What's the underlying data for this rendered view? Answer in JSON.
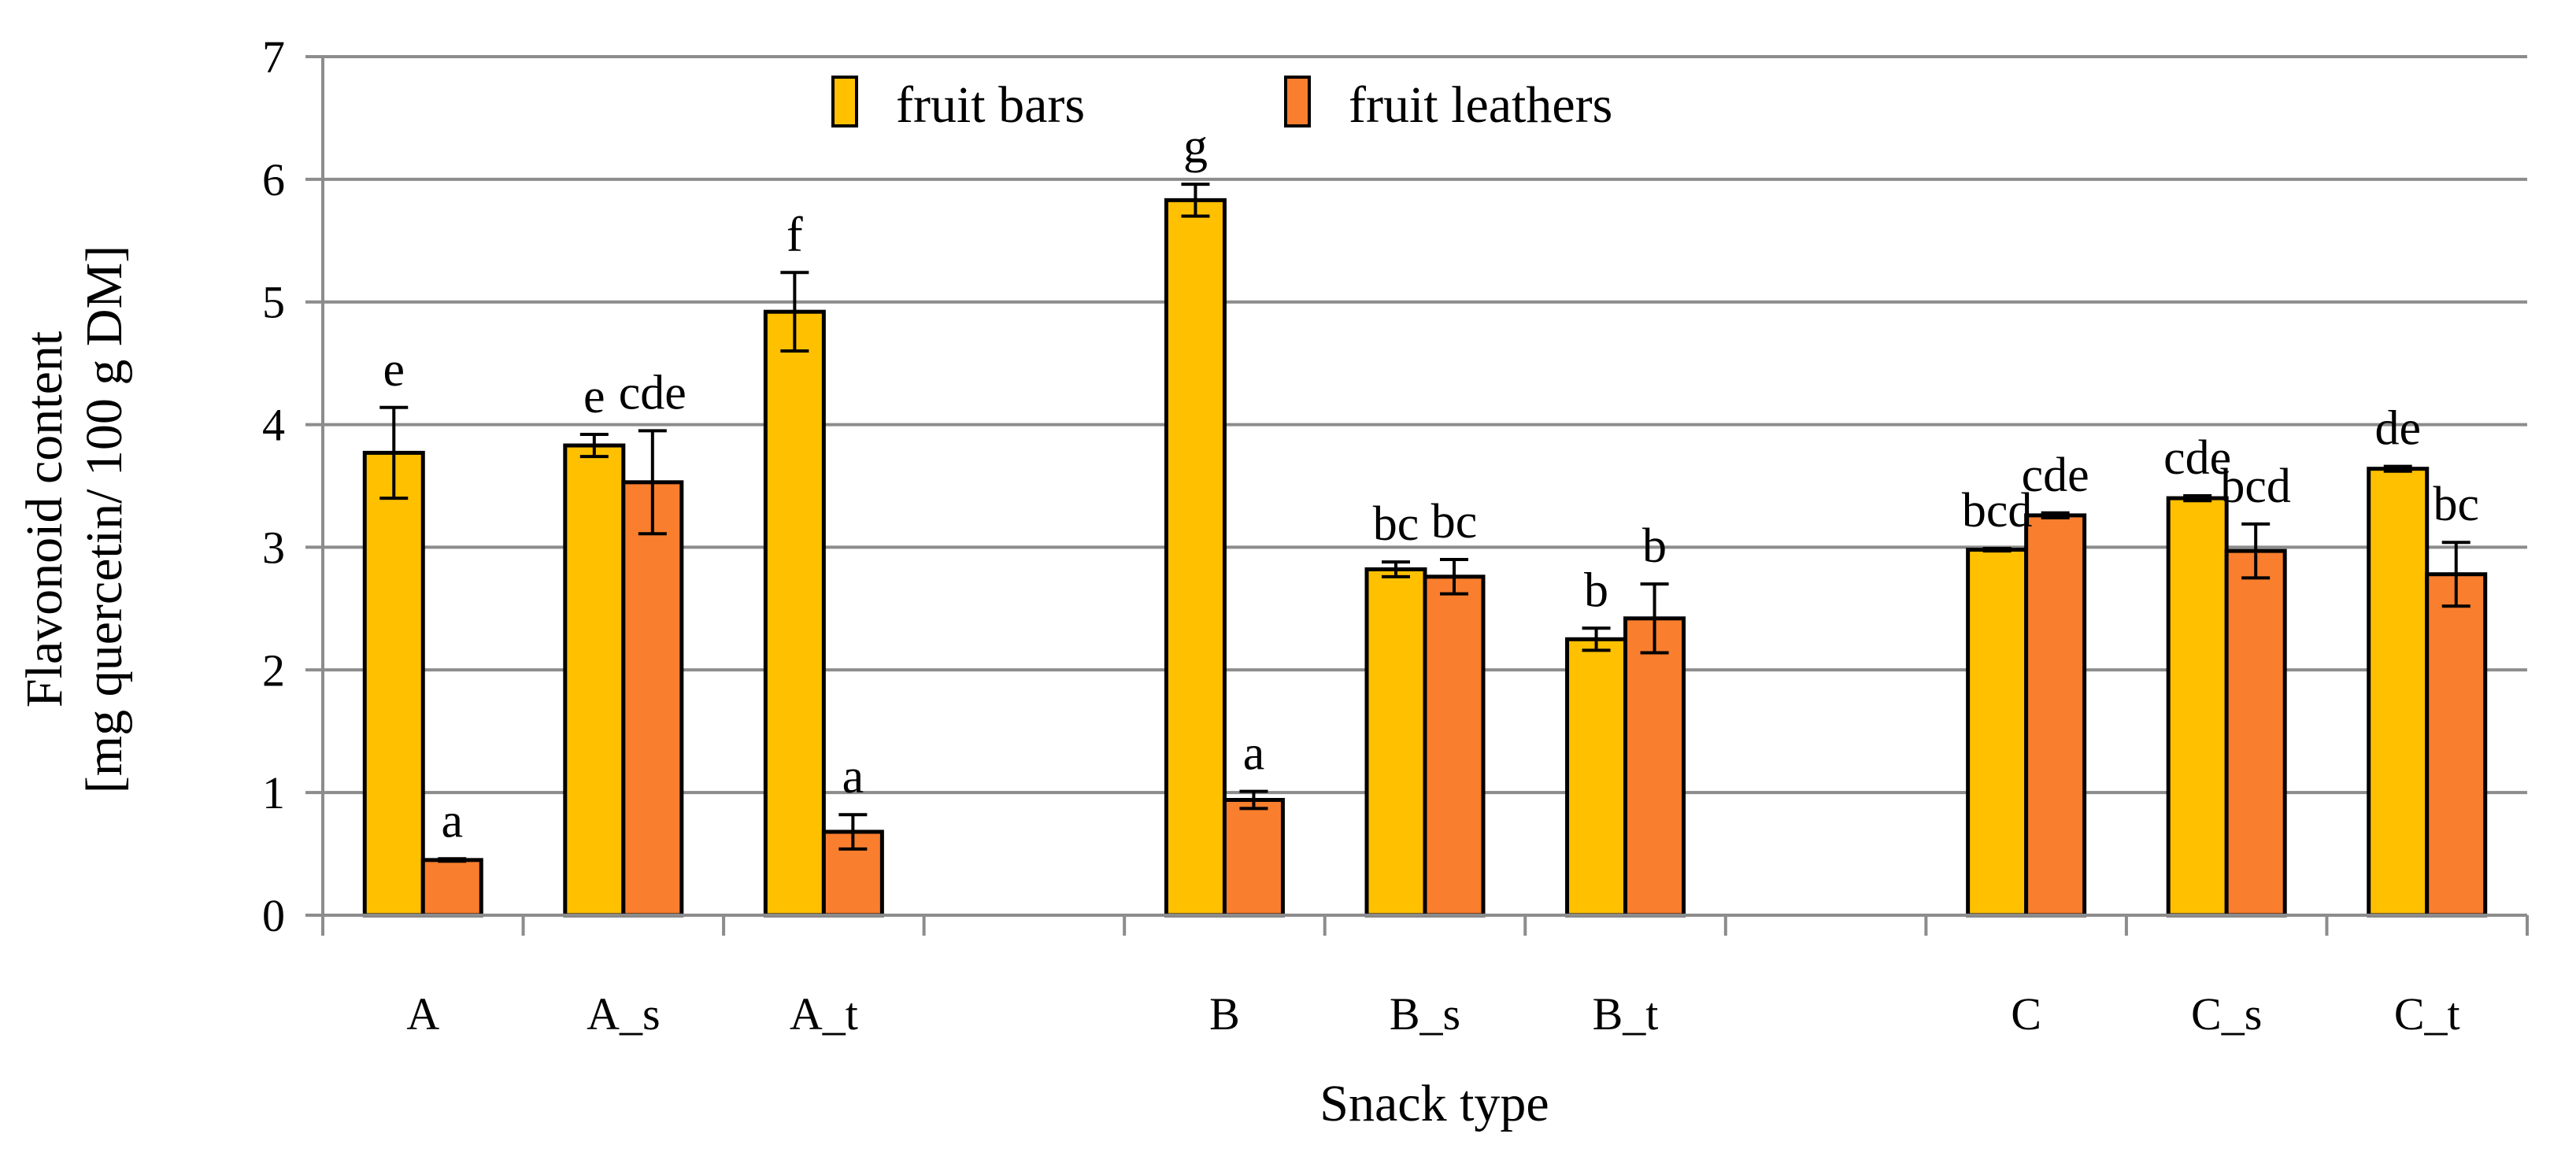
{
  "chart_data": {
    "type": "bar",
    "title": "",
    "xlabel": "Snack type",
    "ylabel_lines": [
      "Flavonoid content",
      "[mg quercetin/ 100 g DM]"
    ],
    "ylim": [
      0,
      7
    ],
    "yticks": [
      0,
      1,
      2,
      3,
      4,
      5,
      6,
      7
    ],
    "grid": true,
    "legend_position": "top-center",
    "categories": [
      "A",
      "A_s",
      "A_t",
      "",
      "B",
      "B_s",
      "B_t",
      "",
      "C",
      "C_s",
      "C_t"
    ],
    "series": [
      {
        "name": "fruit bars",
        "color": "#FFC000",
        "values": [
          3.77,
          3.83,
          4.92,
          null,
          5.83,
          2.82,
          2.25,
          null,
          2.98,
          3.4,
          3.64
        ],
        "errors": [
          0.37,
          0.09,
          0.32,
          null,
          0.13,
          0.06,
          0.09,
          null,
          0.01,
          0.02,
          0.02
        ],
        "labels": [
          "e",
          "e",
          "f",
          "",
          "g",
          "bc",
          "b",
          "",
          "bcd",
          "cde",
          "de"
        ]
      },
      {
        "name": "fruit leathers",
        "color": "#F97E2E",
        "values": [
          0.45,
          3.53,
          0.68,
          null,
          0.94,
          2.76,
          2.42,
          null,
          3.26,
          2.97,
          2.78
        ],
        "errors": [
          0.01,
          0.42,
          0.14,
          null,
          0.07,
          0.14,
          0.28,
          null,
          0.02,
          0.22,
          0.26
        ],
        "labels": [
          "a",
          "cde",
          "a",
          "",
          "a",
          "bc",
          "b",
          "",
          "cde",
          "bcd",
          "bc"
        ]
      }
    ]
  }
}
